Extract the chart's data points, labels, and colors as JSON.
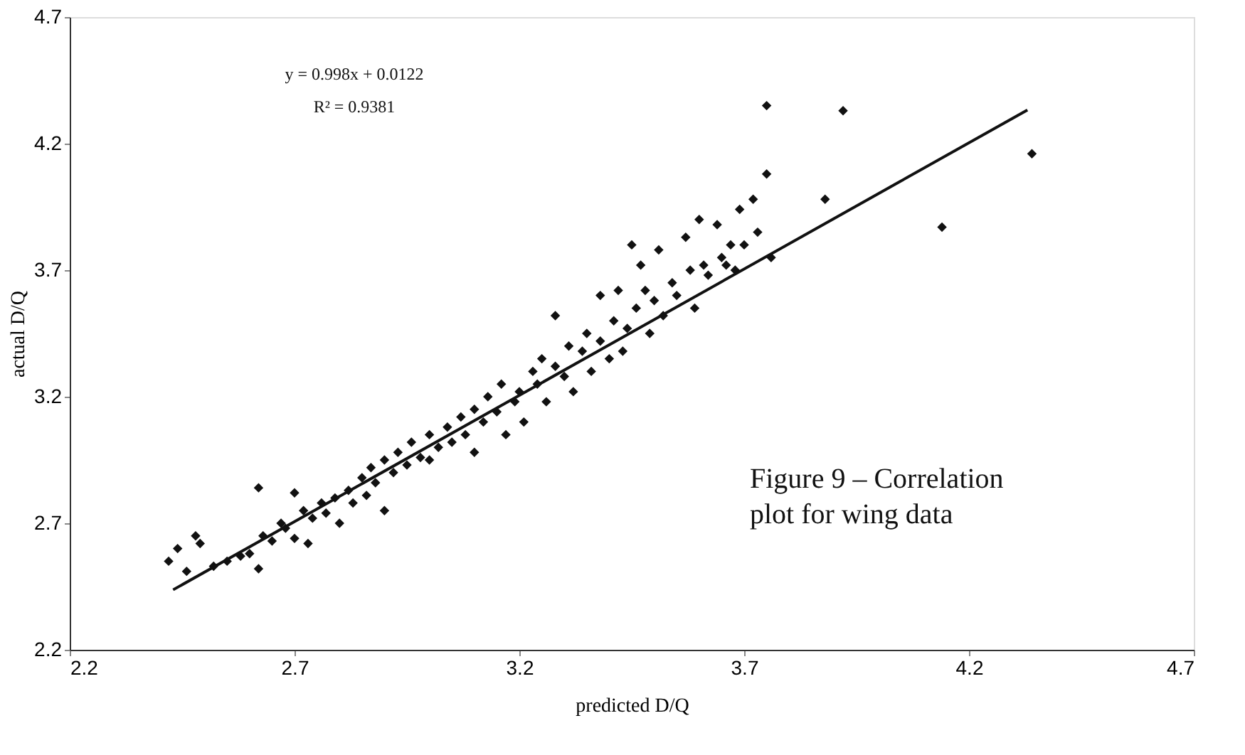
{
  "chart_data": {
    "type": "scatter",
    "xlabel": "predicted D/Q",
    "ylabel": "actual D/Q",
    "xlim": [
      2.2,
      4.7
    ],
    "ylim": [
      2.2,
      4.7
    ],
    "xticks": [
      2.2,
      2.7,
      3.2,
      3.7,
      4.2,
      4.7
    ],
    "yticks": [
      2.2,
      2.7,
      3.2,
      3.7,
      4.2,
      4.7
    ],
    "grid": false,
    "marker": "diamond",
    "annotations": [
      "y = 0.998x + 0.0122",
      "R² = 0.9381",
      "Figure 9 – Correlation plot for wing data"
    ],
    "series": [
      {
        "color": "#111111",
        "x": [
          2.42,
          2.44,
          2.46,
          2.48,
          2.49,
          2.52,
          2.55,
          2.58,
          2.6,
          2.62,
          2.62,
          2.63,
          2.65,
          2.67,
          2.68,
          2.7,
          2.7,
          2.72,
          2.73,
          2.74,
          2.76,
          2.77,
          2.79,
          2.8,
          2.82,
          2.83,
          2.85,
          2.86,
          2.87,
          2.88,
          2.9,
          2.9,
          2.92,
          2.93,
          2.95,
          2.96,
          2.98,
          3.0,
          3.0,
          3.02,
          3.04,
          3.05,
          3.07,
          3.08,
          3.1,
          3.1,
          3.12,
          3.13,
          3.15,
          3.16,
          3.17,
          3.19,
          3.2,
          3.21,
          3.23,
          3.24,
          3.25,
          3.26,
          3.28,
          3.28,
          3.3,
          3.31,
          3.32,
          3.34,
          3.35,
          3.36,
          3.38,
          3.38,
          3.4,
          3.41,
          3.42,
          3.43,
          3.44,
          3.45,
          3.46,
          3.47,
          3.48,
          3.49,
          3.5,
          3.51,
          3.52,
          3.54,
          3.55,
          3.57,
          3.58,
          3.59,
          3.6,
          3.61,
          3.62,
          3.64,
          3.65,
          3.66,
          3.67,
          3.68,
          3.69,
          3.7,
          3.72,
          3.73,
          3.75,
          3.75,
          3.76,
          3.88,
          3.92,
          4.14,
          4.34
        ],
        "values": [
          2.55,
          2.6,
          2.51,
          2.65,
          2.62,
          2.53,
          2.55,
          2.57,
          2.58,
          2.84,
          2.52,
          2.65,
          2.63,
          2.7,
          2.68,
          2.82,
          2.64,
          2.75,
          2.62,
          2.72,
          2.78,
          2.74,
          2.8,
          2.7,
          2.83,
          2.78,
          2.88,
          2.81,
          2.92,
          2.86,
          2.95,
          2.75,
          2.9,
          2.98,
          2.93,
          3.02,
          2.96,
          3.05,
          2.95,
          3.0,
          3.08,
          3.02,
          3.12,
          3.05,
          3.15,
          2.98,
          3.1,
          3.2,
          3.14,
          3.25,
          3.05,
          3.18,
          3.22,
          3.1,
          3.3,
          3.25,
          3.35,
          3.18,
          3.32,
          3.52,
          3.28,
          3.4,
          3.22,
          3.38,
          3.45,
          3.3,
          3.42,
          3.6,
          3.35,
          3.5,
          3.62,
          3.38,
          3.47,
          3.8,
          3.55,
          3.72,
          3.62,
          3.45,
          3.58,
          3.78,
          3.52,
          3.65,
          3.6,
          3.83,
          3.7,
          3.55,
          3.9,
          3.72,
          3.68,
          3.88,
          3.75,
          3.72,
          3.8,
          3.7,
          3.94,
          3.8,
          3.98,
          3.85,
          4.35,
          4.08,
          3.75,
          3.98,
          4.33,
          3.87,
          4.16
        ]
      },
      {
        "type": "line",
        "marker": "none",
        "line_style": "solid",
        "color": "#111111",
        "x": [
          2.43,
          4.33
        ],
        "values": [
          2.437,
          4.333
        ]
      }
    ]
  }
}
